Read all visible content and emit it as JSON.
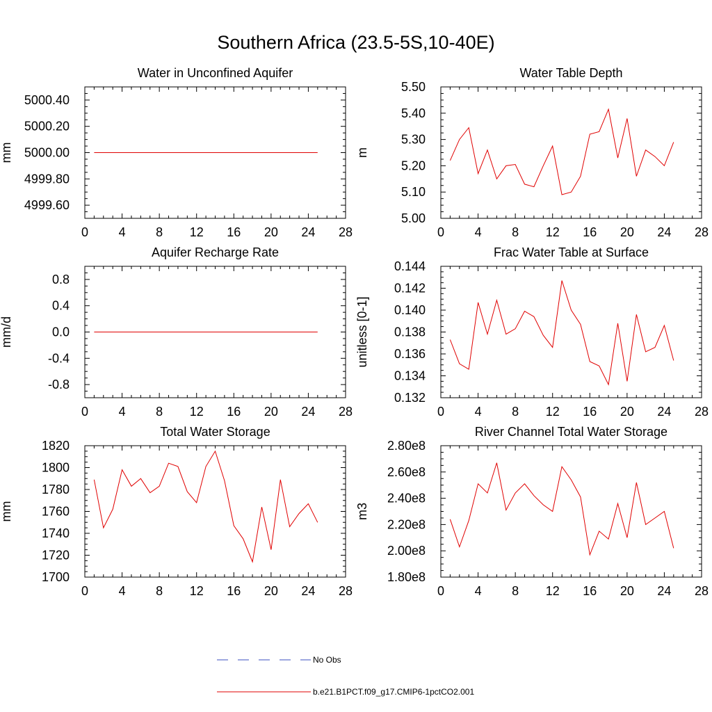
{
  "title": "Southern Africa (23.5-5S,10-40E)",
  "x_ticks": [
    "0",
    "4",
    "8",
    "12",
    "16",
    "20",
    "24",
    "28"
  ],
  "legend": {
    "obs_label": "No Obs",
    "model_label": "b.e21.B1PCT.f09_g17.CMIP6-1pctCO2.001",
    "obs_color": "#3a4fc0",
    "model_color": "#e00000"
  },
  "chart_data": [
    {
      "type": "line",
      "title": "Water in Unconfined Aquifer",
      "ylabel": "mm",
      "xlim": [
        0,
        28
      ],
      "ylim": [
        4999.5,
        5000.5
      ],
      "y_ticks": [
        "4999.60",
        "4999.80",
        "5000.00",
        "5000.20",
        "5000.40"
      ],
      "y_tick_values": [
        4999.6,
        4999.8,
        5000.0,
        5000.2,
        5000.4
      ],
      "x": [
        1,
        2,
        3,
        4,
        5,
        6,
        7,
        8,
        9,
        10,
        11,
        12,
        13,
        14,
        15,
        16,
        17,
        18,
        19,
        20,
        21,
        22,
        23,
        24,
        25
      ],
      "series": [
        {
          "values": [
            5000,
            5000,
            5000,
            5000,
            5000,
            5000,
            5000,
            5000,
            5000,
            5000,
            5000,
            5000,
            5000,
            5000,
            5000,
            5000,
            5000,
            5000,
            5000,
            5000,
            5000,
            5000,
            5000,
            5000,
            5000
          ]
        }
      ]
    },
    {
      "type": "line",
      "title": "Water Table Depth",
      "ylabel": "m",
      "xlim": [
        0,
        28
      ],
      "ylim": [
        5.0,
        5.5
      ],
      "y_ticks": [
        "5.00",
        "5.10",
        "5.20",
        "5.30",
        "5.40",
        "5.50"
      ],
      "y_tick_values": [
        5.0,
        5.1,
        5.2,
        5.3,
        5.4,
        5.5
      ],
      "x": [
        1,
        2,
        3,
        4,
        5,
        6,
        7,
        8,
        9,
        10,
        11,
        12,
        13,
        14,
        15,
        16,
        17,
        18,
        19,
        20,
        21,
        22,
        23,
        24,
        25
      ],
      "series": [
        {
          "values": [
            5.22,
            5.3,
            5.345,
            5.17,
            5.26,
            5.15,
            5.2,
            5.205,
            5.13,
            5.12,
            5.2,
            5.275,
            5.09,
            5.1,
            5.16,
            5.32,
            5.33,
            5.415,
            5.23,
            5.38,
            5.16,
            5.26,
            5.235,
            5.2,
            5.29
          ]
        }
      ]
    },
    {
      "type": "line",
      "title": "Aquifer Recharge Rate",
      "ylabel": "mm/d",
      "xlim": [
        0,
        28
      ],
      "ylim": [
        -1.0,
        1.0
      ],
      "y_ticks": [
        "-0.8",
        "-0.4",
        "0.0",
        "0.4",
        "0.8"
      ],
      "y_tick_values": [
        -0.8,
        -0.4,
        0.0,
        0.4,
        0.8
      ],
      "x": [
        1,
        2,
        3,
        4,
        5,
        6,
        7,
        8,
        9,
        10,
        11,
        12,
        13,
        14,
        15,
        16,
        17,
        18,
        19,
        20,
        21,
        22,
        23,
        24,
        25
      ],
      "series": [
        {
          "values": [
            0,
            0,
            0,
            0,
            0,
            0,
            0,
            0,
            0,
            0,
            0,
            0,
            0,
            0,
            0,
            0,
            0,
            0,
            0,
            0,
            0,
            0,
            0,
            0,
            0
          ]
        }
      ]
    },
    {
      "type": "line",
      "title": "Frac Water Table at Surface",
      "ylabel": "unitless [0-1]",
      "xlim": [
        0,
        28
      ],
      "ylim": [
        0.132,
        0.144
      ],
      "y_ticks": [
        "0.132",
        "0.134",
        "0.136",
        "0.138",
        "0.140",
        "0.142",
        "0.144"
      ],
      "y_tick_values": [
        0.132,
        0.134,
        0.136,
        0.138,
        0.14,
        0.142,
        0.144
      ],
      "x": [
        1,
        2,
        3,
        4,
        5,
        6,
        7,
        8,
        9,
        10,
        11,
        12,
        13,
        14,
        15,
        16,
        17,
        18,
        19,
        20,
        21,
        22,
        23,
        24,
        25
      ],
      "series": [
        {
          "values": [
            0.1373,
            0.1351,
            0.1346,
            0.1407,
            0.1378,
            0.1409,
            0.1378,
            0.1383,
            0.1399,
            0.1394,
            0.1377,
            0.1366,
            0.1427,
            0.14,
            0.1387,
            0.1353,
            0.1349,
            0.1332,
            0.1388,
            0.1335,
            0.1396,
            0.1362,
            0.1366,
            0.1386,
            0.1354
          ]
        }
      ]
    },
    {
      "type": "line",
      "title": "Total Water Storage",
      "ylabel": "mm",
      "xlim": [
        0,
        28
      ],
      "ylim": [
        1700,
        1820
      ],
      "y_ticks": [
        "1700",
        "1720",
        "1740",
        "1760",
        "1780",
        "1800",
        "1820"
      ],
      "y_tick_values": [
        1700,
        1720,
        1740,
        1760,
        1780,
        1800,
        1820
      ],
      "x": [
        1,
        2,
        3,
        4,
        5,
        6,
        7,
        8,
        9,
        10,
        11,
        12,
        13,
        14,
        15,
        16,
        17,
        18,
        19,
        20,
        21,
        22,
        23,
        24,
        25
      ],
      "series": [
        {
          "values": [
            1789,
            1745,
            1762,
            1798,
            1783,
            1790,
            1777,
            1783,
            1804,
            1801,
            1778,
            1768,
            1801,
            1815,
            1788,
            1747,
            1735,
            1714,
            1764,
            1725,
            1789,
            1746,
            1758,
            1767,
            1750
          ]
        }
      ]
    },
    {
      "type": "line",
      "title": "River Channel Total Water Storage",
      "ylabel": "m3",
      "xlim": [
        0,
        28
      ],
      "ylim": [
        180000000,
        280000000
      ],
      "y_ticks": [
        "1.80e8",
        "2.00e8",
        "2.20e8",
        "2.40e8",
        "2.60e8",
        "2.80e8"
      ],
      "y_tick_values": [
        180000000,
        200000000,
        220000000,
        240000000,
        260000000,
        280000000
      ],
      "x": [
        1,
        2,
        3,
        4,
        5,
        6,
        7,
        8,
        9,
        10,
        11,
        12,
        13,
        14,
        15,
        16,
        17,
        18,
        19,
        20,
        21,
        22,
        23,
        24,
        25
      ],
      "series": [
        {
          "values": [
            224000000,
            203000000,
            223000000,
            251000000,
            244000000,
            267000000,
            231000000,
            244000000,
            251000000,
            242000000,
            235000000,
            230000000,
            264000000,
            254000000,
            241000000,
            197000000,
            215000000,
            209000000,
            236000000,
            210000000,
            252000000,
            220000000,
            225000000,
            230000000,
            202000000
          ]
        }
      ]
    }
  ]
}
